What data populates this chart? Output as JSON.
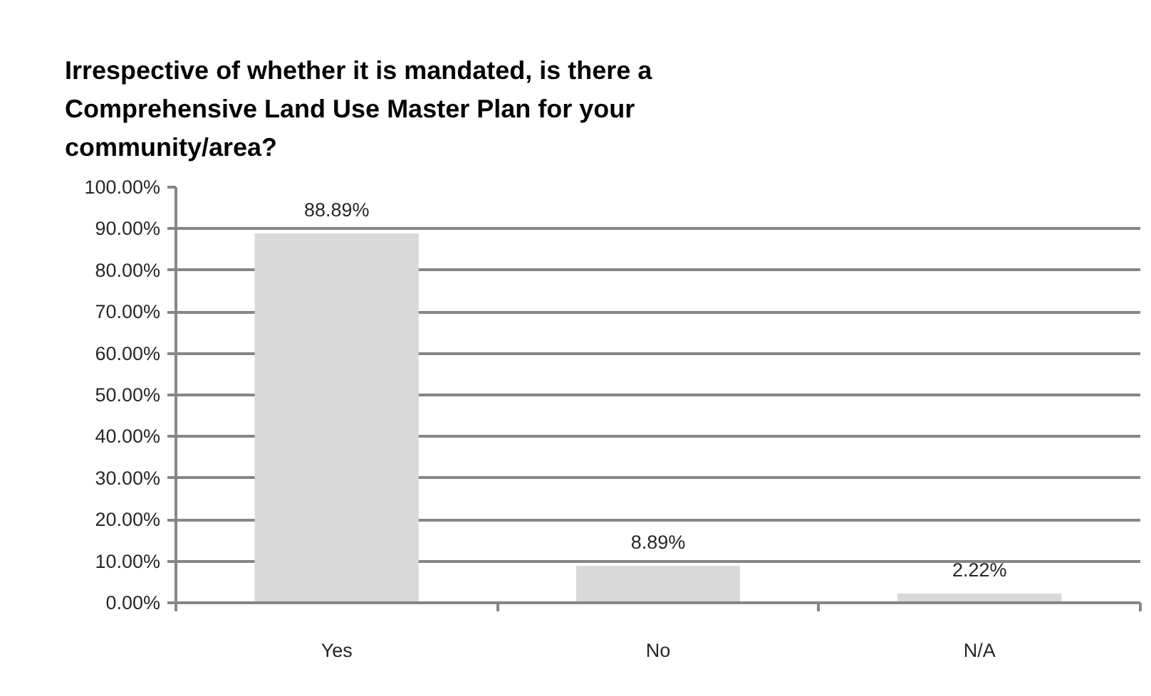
{
  "chart_data": {
    "type": "bar",
    "title": "Irrespective of whether it is mandated, is there a Comprehensive Land Use Master Plan for your community/area?",
    "categories": [
      "Yes",
      "No",
      "N/A"
    ],
    "values": [
      88.89,
      8.89,
      2.22
    ],
    "color": "#d9d9d9",
    "value_labels": [
      "88.89%",
      "8.89%",
      "2.22%"
    ],
    "ylim": [
      0,
      100
    ],
    "yticks": [
      {
        "value": 0,
        "label": "0.00%"
      },
      {
        "value": 10,
        "label": "10.00%"
      },
      {
        "value": 20,
        "label": "20.00%"
      },
      {
        "value": 30,
        "label": "30.00%"
      },
      {
        "value": 40,
        "label": "40.00%"
      },
      {
        "value": 50,
        "label": "50.00%"
      },
      {
        "value": 60,
        "label": "60.00%"
      },
      {
        "value": 70,
        "label": "70.00%"
      },
      {
        "value": 80,
        "label": "80.00%"
      },
      {
        "value": 90,
        "label": "90.00%"
      },
      {
        "value": 100,
        "label": "100.00%"
      }
    ],
    "grid": "y"
  }
}
